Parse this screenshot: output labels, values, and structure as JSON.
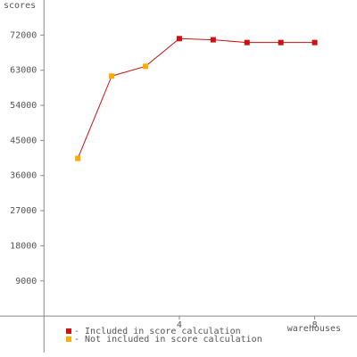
{
  "chart_data": {
    "type": "line",
    "y_label": "scores",
    "x_label": "warehouses",
    "x": [
      1,
      2,
      3,
      4,
      5,
      6,
      7,
      8
    ],
    "series": [
      {
        "name": "- Included in score calculation",
        "color": "#cc1111",
        "values": [
          null,
          null,
          null,
          71100,
          70800,
          70100,
          70100,
          70100
        ]
      },
      {
        "name": "- Not included in score calculation",
        "color": "#ffaa00",
        "values": [
          40400,
          61500,
          64000,
          null,
          null,
          null,
          null,
          null
        ]
      }
    ],
    "line_color": "#cc1111",
    "xlim": [
      -1.3,
      9.25
    ],
    "xticks": [
      4,
      8
    ],
    "ylim": [
      -10500,
      81000
    ],
    "yticks": [
      9000,
      18000,
      27000,
      36000,
      45000,
      54000,
      63000,
      72000
    ],
    "grid": false
  }
}
